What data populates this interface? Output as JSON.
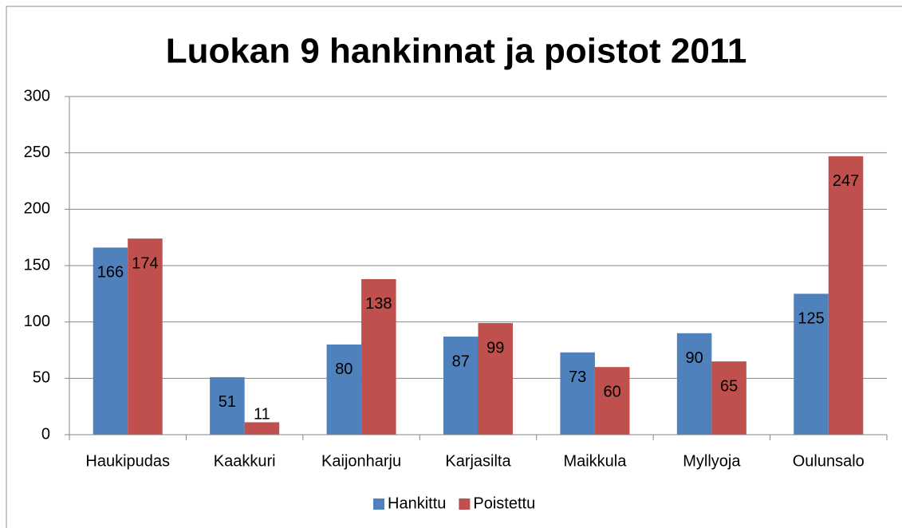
{
  "chart_data": {
    "type": "bar",
    "title": "Luokan 9 hankinnat ja poistot 2011",
    "categories": [
      "Haukipudas",
      "Kaakkuri",
      "Kaijonharju",
      "Karjasilta",
      "Maikkula",
      "Myllyoja",
      "Oulunsalo"
    ],
    "series": [
      {
        "name": "Hankittu",
        "color": "#4f81bd",
        "values": [
          166,
          51,
          80,
          87,
          73,
          90,
          125
        ]
      },
      {
        "name": "Poistettu",
        "color": "#c0504d",
        "values": [
          174,
          11,
          138,
          99,
          60,
          65,
          247
        ]
      }
    ],
    "ylim": [
      0,
      300
    ],
    "yticks": [
      0,
      50,
      100,
      150,
      200,
      250,
      300
    ],
    "grid": true,
    "legend": "bottom"
  }
}
